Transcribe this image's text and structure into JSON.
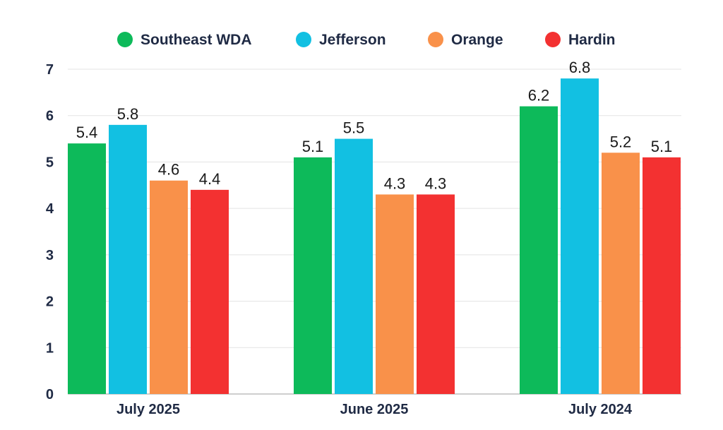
{
  "chart_data": {
    "type": "bar",
    "title": "",
    "xlabel": "",
    "ylabel": "",
    "ylim": [
      0,
      7
    ],
    "yticks": [
      0,
      1,
      2,
      3,
      4,
      5,
      6,
      7
    ],
    "grid": true,
    "legend_position": "top",
    "categories": [
      "July 2025",
      "June 2025",
      "July 2024"
    ],
    "series": [
      {
        "name": "Southeast WDA",
        "color": "#0dba5a",
        "values": [
          5.4,
          5.1,
          6.2
        ]
      },
      {
        "name": "Jefferson",
        "color": "#12c0e2",
        "values": [
          5.8,
          5.5,
          6.8
        ]
      },
      {
        "name": "Orange",
        "color": "#f9914a",
        "values": [
          4.6,
          4.3,
          5.2
        ]
      },
      {
        "name": "Hardin",
        "color": "#f33131",
        "values": [
          4.4,
          4.3,
          5.1
        ]
      }
    ]
  }
}
